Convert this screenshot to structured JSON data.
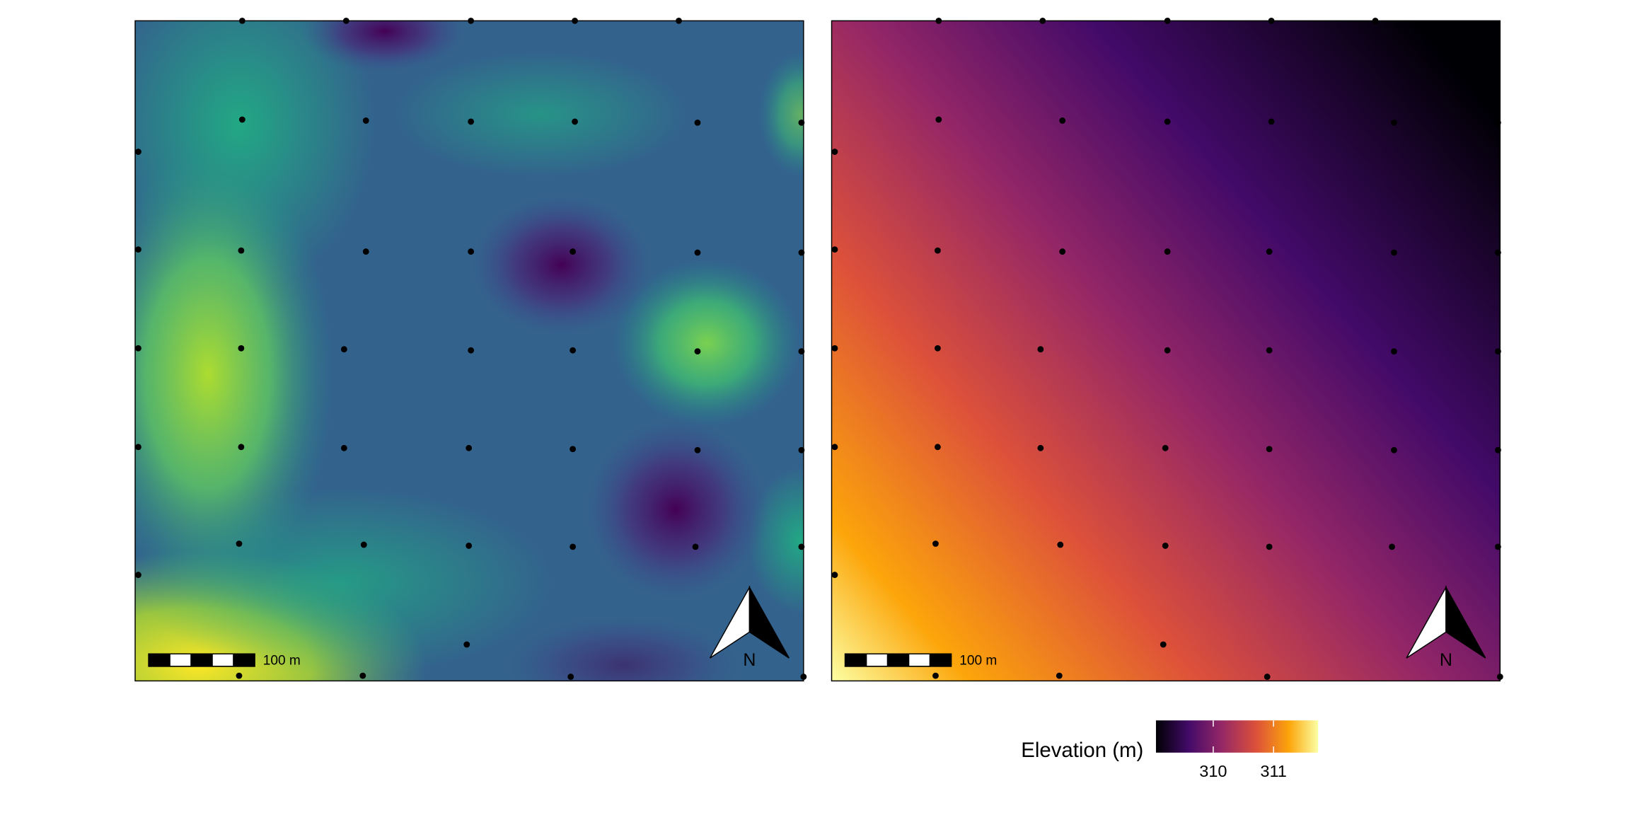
{
  "maps": [
    {
      "scale_bar": "100 m",
      "north": "N"
    },
    {
      "scale_bar": "100 m",
      "north": "N"
    }
  ],
  "legend": {
    "title": "Elevation (m)",
    "lim": [
      309.05,
      311.74
    ],
    "ticks": [
      310,
      311
    ]
  }
}
